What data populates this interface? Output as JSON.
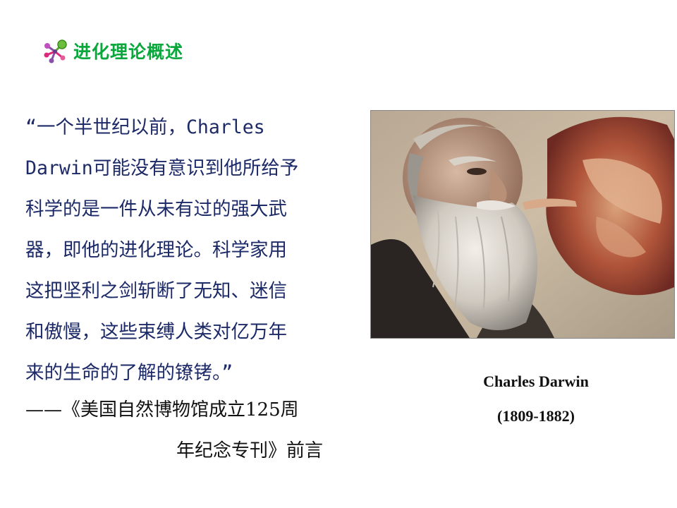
{
  "slide": {
    "title": "进化理论概述",
    "quote_lines": [
      "“一个半世纪以前，Charles",
      "Darwin可能没有意识到他所给予",
      "科学的是一件从未有过的强大武",
      "器，即他的进化理论。科学家用",
      "这把坚利之剑斩断了无知、迷信",
      "和傲慢，这些束缚人类对亿万年",
      "来的生命的了解的镣铐。”"
    ],
    "source_lines": [
      "——《美国自然博物馆成立125周",
      "年纪念专刊》前言"
    ],
    "photo": {
      "caption_name": "Charles Darwin",
      "caption_years": "(1809-1882)"
    },
    "icons": {
      "title_bullet": "molecule-bullet-icon"
    },
    "colors": {
      "title": "#0aa83c",
      "quote_text": "#1d2a68",
      "source_text": "#111111"
    }
  }
}
